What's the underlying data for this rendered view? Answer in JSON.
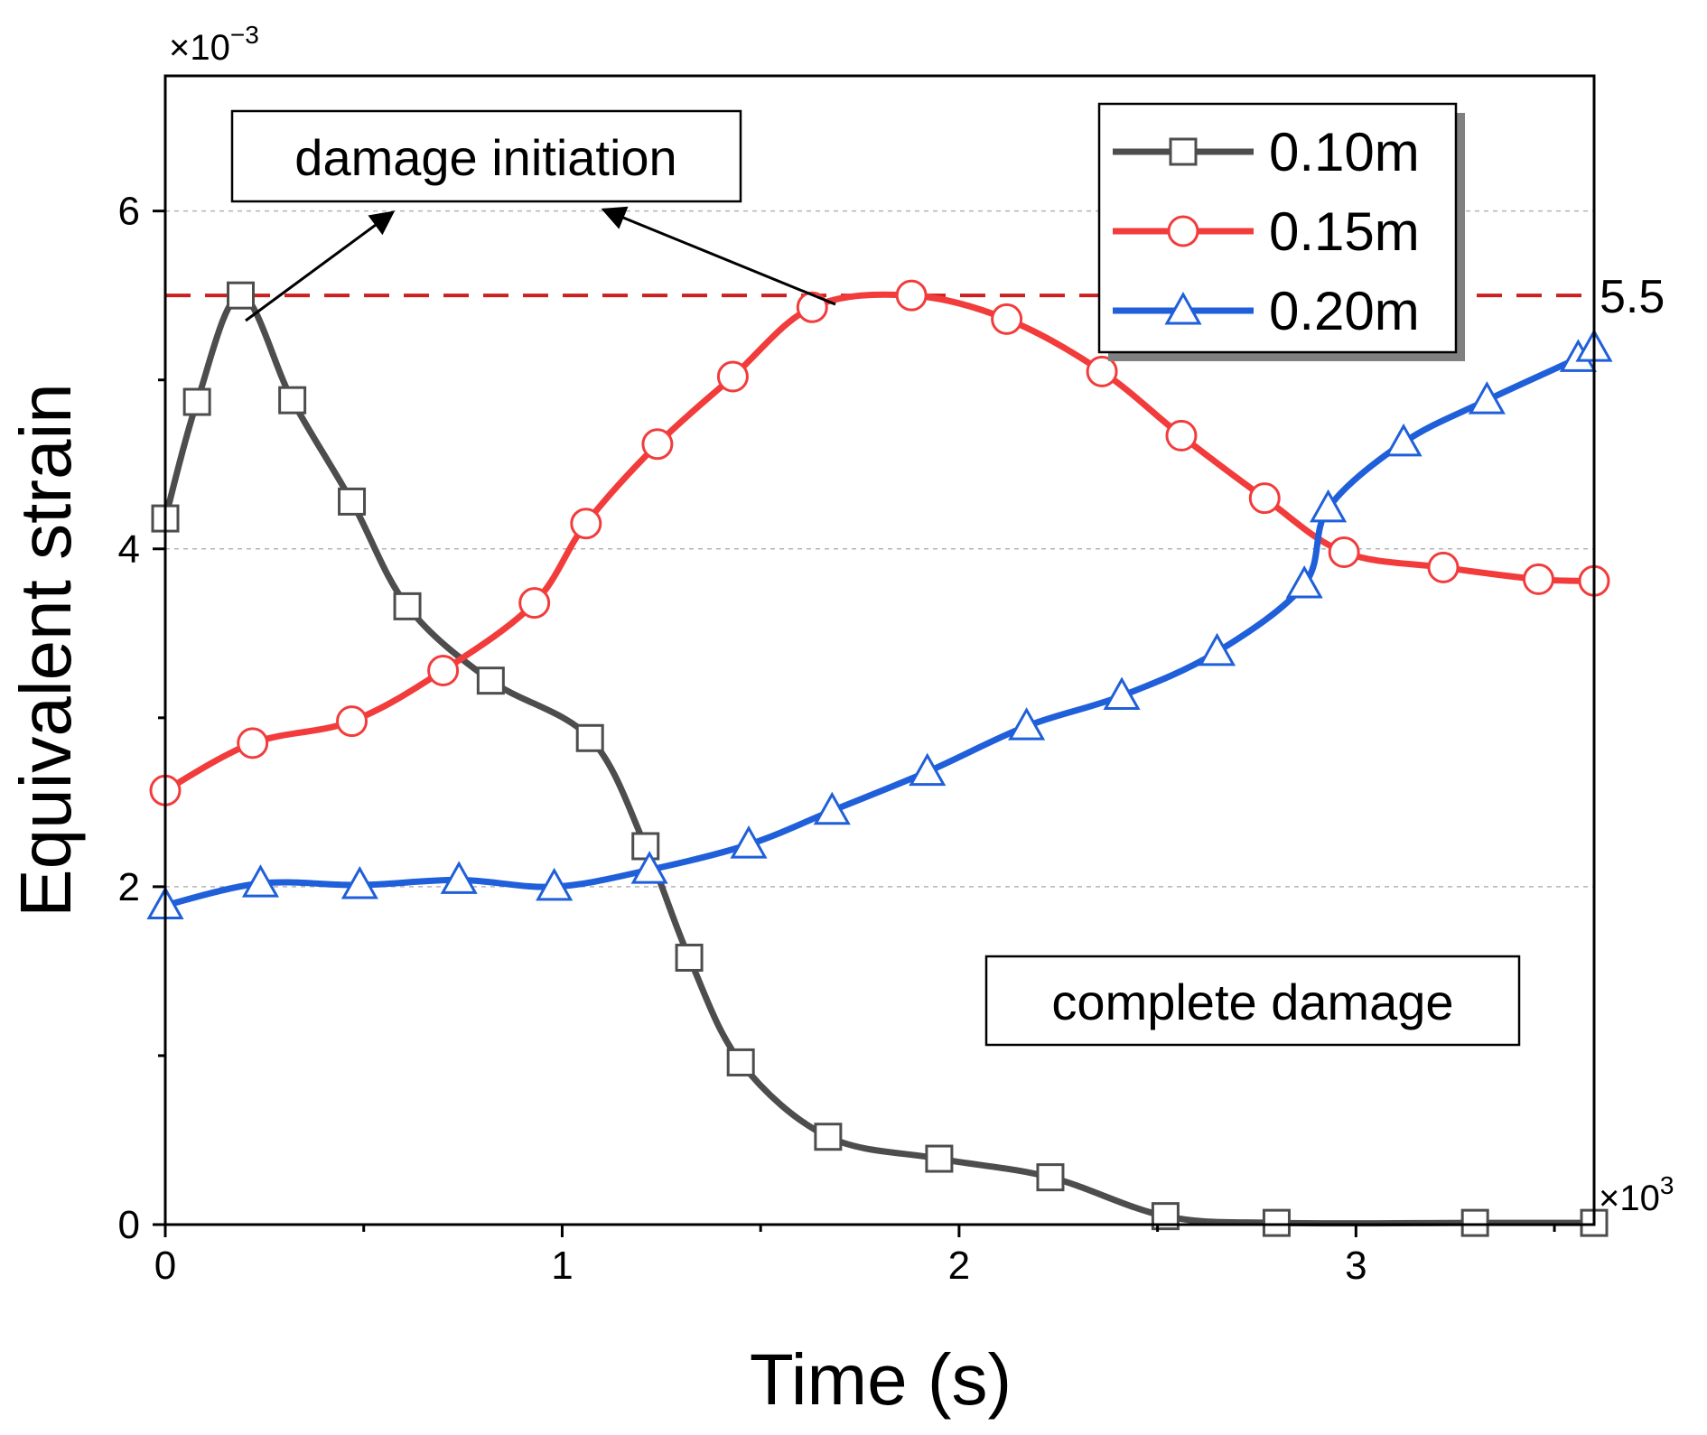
{
  "chart_data": {
    "type": "line",
    "title": "",
    "xlabel": "Time (s)",
    "ylabel": "Equivalent strain",
    "x_multiplier_label": "×10",
    "x_multiplier_exp": "3",
    "y_multiplier_label": "×10",
    "y_multiplier_exp": "−3",
    "xlim": [
      0,
      3.6
    ],
    "ylim": [
      0,
      6.8
    ],
    "x_ticks": [
      "0",
      "1",
      "2",
      "3"
    ],
    "y_ticks": [
      "0",
      "2",
      "4",
      "6"
    ],
    "grid_y": [
      2,
      4,
      6
    ],
    "legend_position": "top-right",
    "series": [
      {
        "name": "0.10m",
        "color": "#4d4d4d",
        "marker": "square",
        "x": [
          0,
          0.08,
          0.19,
          0.32,
          0.47,
          0.61,
          0.82,
          1.07,
          1.21,
          1.32,
          1.45,
          1.67,
          1.95,
          2.23,
          2.52,
          2.8,
          3.3,
          3.6
        ],
        "y": [
          4.18,
          4.87,
          5.5,
          4.88,
          4.28,
          3.66,
          3.22,
          2.88,
          2.24,
          1.58,
          0.96,
          0.52,
          0.39,
          0.28,
          0.05,
          0.01,
          0.01,
          0.01
        ]
      },
      {
        "name": "0.15m",
        "color": "#f23c3c",
        "marker": "circle",
        "x": [
          0,
          0.22,
          0.47,
          0.7,
          0.93,
          1.06,
          1.24,
          1.43,
          1.63,
          1.88,
          2.12,
          2.36,
          2.56,
          2.77,
          2.97,
          3.22,
          3.46,
          3.6
        ],
        "y": [
          2.57,
          2.85,
          2.98,
          3.28,
          3.68,
          4.15,
          4.62,
          5.02,
          5.43,
          5.5,
          5.36,
          5.05,
          4.67,
          4.3,
          3.98,
          3.89,
          3.82,
          3.81
        ]
      },
      {
        "name": "0.20m",
        "color": "#1f5fd9",
        "marker": "triangle",
        "x": [
          0,
          0.24,
          0.49,
          0.74,
          0.98,
          1.22,
          1.47,
          1.68,
          1.92,
          2.17,
          2.41,
          2.65,
          2.87,
          2.93,
          3.12,
          3.33,
          3.56,
          3.6
        ],
        "y": [
          1.89,
          2.02,
          2.01,
          2.04,
          2.0,
          2.1,
          2.25,
          2.45,
          2.68,
          2.95,
          3.13,
          3.39,
          3.79,
          4.24,
          4.63,
          4.88,
          5.13,
          5.19
        ]
      }
    ],
    "reference_line": {
      "y": 5.5,
      "label": "5.5",
      "color": "#cc1f1f"
    },
    "annotations": [
      {
        "text": "damage initiation",
        "color": "#138a8a"
      },
      {
        "text": "complete damage",
        "color": "#1414e6"
      }
    ]
  }
}
